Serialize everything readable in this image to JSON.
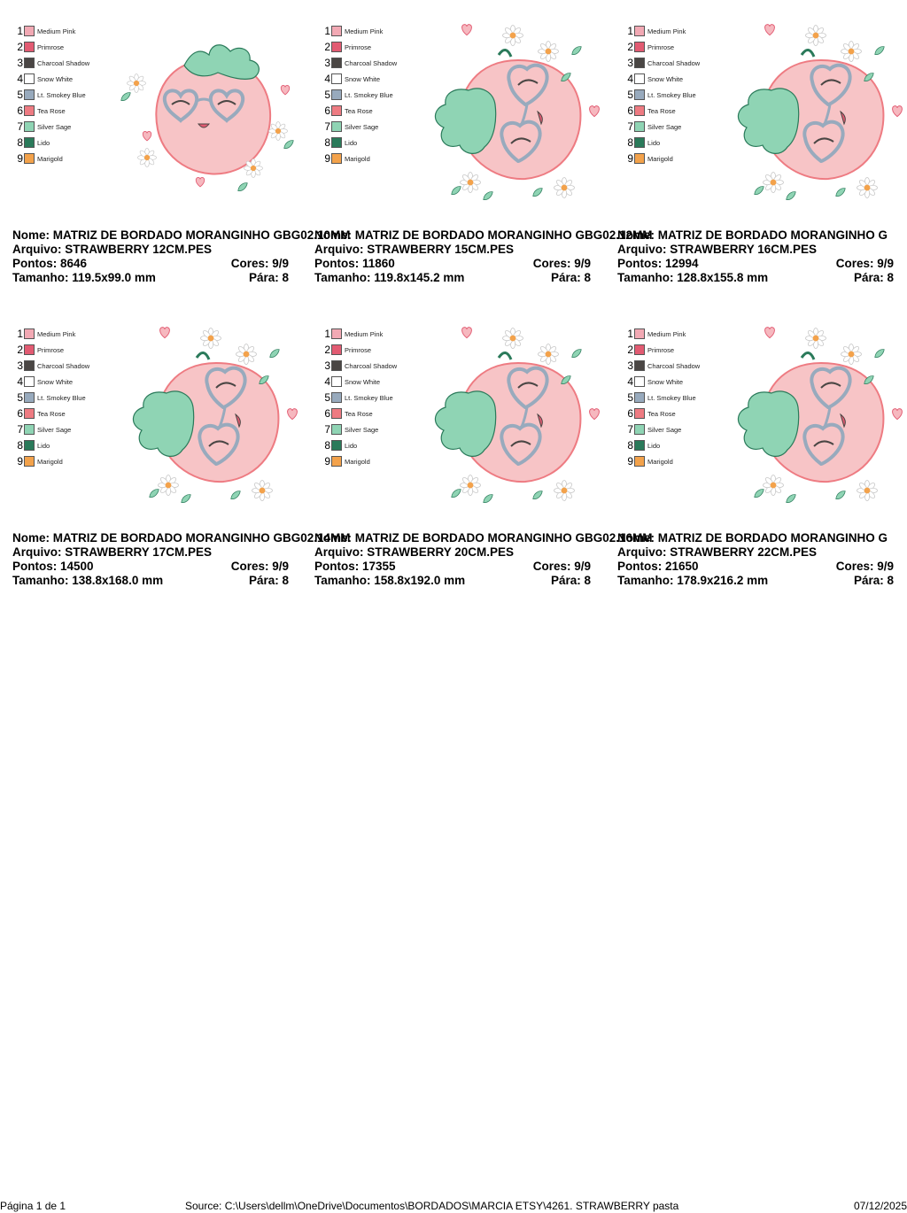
{
  "threads": [
    {
      "num": "1",
      "name": "Medium Pink",
      "color": "#f2a9b4"
    },
    {
      "num": "2",
      "name": "Primrose",
      "color": "#e25b72"
    },
    {
      "num": "3",
      "name": "Charcoal Shadow",
      "color": "#4a4644"
    },
    {
      "num": "4",
      "name": "Snow White",
      "color": "#ffffff"
    },
    {
      "num": "5",
      "name": "Lt. Smokey Blue",
      "color": "#98aabd"
    },
    {
      "num": "6",
      "name": "Tea Rose",
      "color": "#ee7b82"
    },
    {
      "num": "7",
      "name": "Silver Sage",
      "color": "#8fd4b4"
    },
    {
      "num": "8",
      "name": "Lido",
      "color": "#2a7a5a"
    },
    {
      "num": "9",
      "name": "Marigold",
      "color": "#f3a24b"
    }
  ],
  "designs": [
    {
      "nome": "Nome: MATRIZ DE BORDADO MORANGINHO GBG02.10MM",
      "arquivo": "Arquivo: STRAWBERRY 12CM.PES",
      "pontos": "Pontos: 8646",
      "cores": "Cores: 9/9",
      "tamanho": "Tamanho: 119.5x99.0 mm",
      "para": "Pára: 8"
    },
    {
      "nome": "Nome: MATRIZ DE BORDADO MORANGINHO GBG02.12MM",
      "arquivo": "Arquivo: STRAWBERRY 15CM.PES",
      "pontos": "Pontos: 11860",
      "cores": "Cores: 9/9",
      "tamanho": "Tamanho: 119.8x145.2 mm",
      "para": "Pára: 8"
    },
    {
      "nome": "Nome: MATRIZ DE BORDADO MORANGINHO G",
      "arquivo": "Arquivo: STRAWBERRY 16CM.PES",
      "pontos": "Pontos: 12994",
      "cores": "Cores: 9/9",
      "tamanho": "Tamanho: 128.8x155.8 mm",
      "para": "Pára: 8"
    },
    {
      "nome": "Nome: MATRIZ DE BORDADO MORANGINHO GBG02.14MM",
      "arquivo": "Arquivo: STRAWBERRY 17CM.PES",
      "pontos": "Pontos: 14500",
      "cores": "Cores: 9/9",
      "tamanho": "Tamanho: 138.8x168.0 mm",
      "para": "Pára: 8"
    },
    {
      "nome": "Nome: MATRIZ DE BORDADO MORANGINHO GBG02.16MM",
      "arquivo": "Arquivo: STRAWBERRY 20CM.PES",
      "pontos": "Pontos: 17355",
      "cores": "Cores: 9/9",
      "tamanho": "Tamanho: 158.8x192.0 mm",
      "para": "Pára: 8"
    },
    {
      "nome": "Nome: MATRIZ DE BORDADO MORANGINHO G",
      "arquivo": "Arquivo: STRAWBERRY 22CM.PES",
      "pontos": "Pontos: 21650",
      "cores": "Cores: 9/9",
      "tamanho": "Tamanho: 178.9x216.2 mm",
      "para": "Pára: 8"
    }
  ],
  "footer": {
    "page": "Página 1 de 1",
    "source": "Source: C:\\Users\\dellm\\OneDrive\\Documentos\\BORDADOS\\MARCIA ETSY\\4261. STRAWBERRY pasta",
    "date": "07/12/2025"
  }
}
